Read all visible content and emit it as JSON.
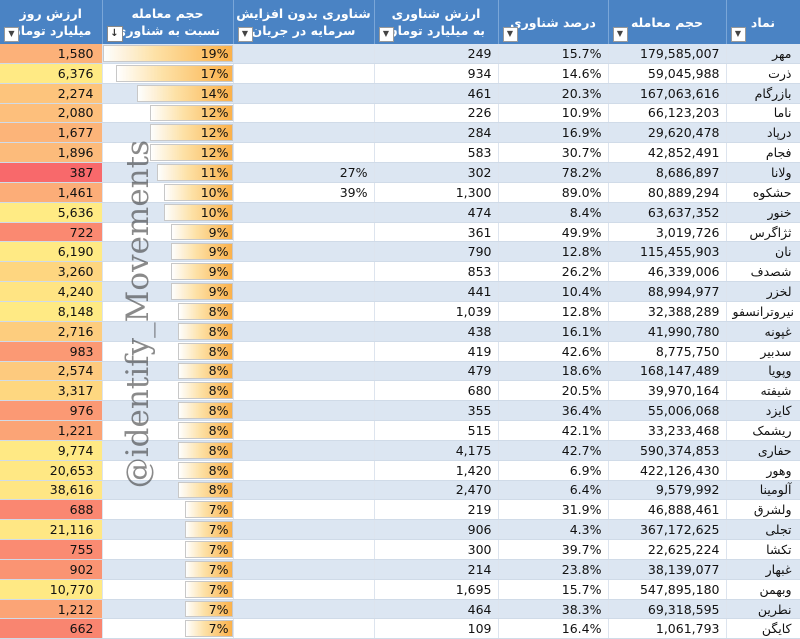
{
  "headers": {
    "value_day": "ارزش روز\nمیلیارد تومان",
    "vol_ratio": "حجم معامله\nنسبت به شناوری",
    "float_no_cap": "شناوری بدون افزایش\nسرمایه در جریان",
    "float_value": "ارزش شناوری\nبه میلیارد تومان",
    "float_pct": "درصد شناوری",
    "volume": "حجم معامله",
    "symbol": "نماد"
  },
  "watermark": "@identify_Movements",
  "colors": {
    "header": "#4a83c4",
    "band": "#dce6f2",
    "bar": "#fbb14a",
    "heat_low": "#f8696b",
    "heat_mid": "#ffeb84",
    "heat_high": "#f8696b"
  },
  "rows": [
    {
      "symbol": "مهر",
      "volume": "179,585,007",
      "float_pct": "15.7%",
      "float_value": "249",
      "float_no_cap": "",
      "ratio": "19%",
      "ratio_v": 19,
      "value_day": "1,580",
      "value_v": 1580
    },
    {
      "symbol": "ذرت",
      "volume": "59,045,988",
      "float_pct": "14.6%",
      "float_value": "934",
      "float_no_cap": "",
      "ratio": "17%",
      "ratio_v": 17,
      "value_day": "6,376",
      "value_v": 6376
    },
    {
      "symbol": "بازرگام",
      "volume": "167,063,616",
      "float_pct": "20.3%",
      "float_value": "461",
      "float_no_cap": "",
      "ratio": "14%",
      "ratio_v": 14,
      "value_day": "2,274",
      "value_v": 2274
    },
    {
      "symbol": "ناما",
      "volume": "66,123,203",
      "float_pct": "10.9%",
      "float_value": "226",
      "float_no_cap": "",
      "ratio": "12%",
      "ratio_v": 12,
      "value_day": "2,080",
      "value_v": 2080
    },
    {
      "symbol": "درپاد",
      "volume": "29,620,478",
      "float_pct": "16.9%",
      "float_value": "284",
      "float_no_cap": "",
      "ratio": "12%",
      "ratio_v": 12,
      "value_day": "1,677",
      "value_v": 1677
    },
    {
      "symbol": "فجام",
      "volume": "42,852,491",
      "float_pct": "30.7%",
      "float_value": "583",
      "float_no_cap": "",
      "ratio": "12%",
      "ratio_v": 12,
      "value_day": "1,896",
      "value_v": 1896
    },
    {
      "symbol": "ولانا",
      "volume": "8,686,897",
      "float_pct": "78.2%",
      "float_value": "302",
      "float_no_cap": "27%",
      "ratio": "11%",
      "ratio_v": 11,
      "value_day": "387",
      "value_v": 387
    },
    {
      "symbol": "حشکوه",
      "volume": "80,889,294",
      "float_pct": "89.0%",
      "float_value": "1,300",
      "float_no_cap": "39%",
      "ratio": "10%",
      "ratio_v": 10,
      "value_day": "1,461",
      "value_v": 1461
    },
    {
      "symbol": "خنور",
      "volume": "63,637,352",
      "float_pct": "8.4%",
      "float_value": "474",
      "float_no_cap": "",
      "ratio": "10%",
      "ratio_v": 10,
      "value_day": "5,636",
      "value_v": 5636
    },
    {
      "symbol": "ثژاگرس",
      "volume": "3,019,726",
      "float_pct": "49.9%",
      "float_value": "361",
      "float_no_cap": "",
      "ratio": "9%",
      "ratio_v": 9,
      "value_day": "722",
      "value_v": 722
    },
    {
      "symbol": "نان",
      "volume": "115,455,903",
      "float_pct": "12.8%",
      "float_value": "790",
      "float_no_cap": "",
      "ratio": "9%",
      "ratio_v": 9,
      "value_day": "6,190",
      "value_v": 6190
    },
    {
      "symbol": "شصدف",
      "volume": "46,339,006",
      "float_pct": "26.2%",
      "float_value": "853",
      "float_no_cap": "",
      "ratio": "9%",
      "ratio_v": 9,
      "value_day": "3,260",
      "value_v": 3260
    },
    {
      "symbol": "لخزر",
      "volume": "88,994,977",
      "float_pct": "10.4%",
      "float_value": "441",
      "float_no_cap": "",
      "ratio": "9%",
      "ratio_v": 9,
      "value_day": "4,240",
      "value_v": 4240
    },
    {
      "symbol": "نیروترانسفو",
      "volume": "32,388,289",
      "float_pct": "12.8%",
      "float_value": "1,039",
      "float_no_cap": "",
      "ratio": "8%",
      "ratio_v": 8,
      "value_day": "8,148",
      "value_v": 8148
    },
    {
      "symbol": "غپونه",
      "volume": "41,990,780",
      "float_pct": "16.1%",
      "float_value": "438",
      "float_no_cap": "",
      "ratio": "8%",
      "ratio_v": 8,
      "value_day": "2,716",
      "value_v": 2716
    },
    {
      "symbol": "سدبیر",
      "volume": "8,775,750",
      "float_pct": "42.6%",
      "float_value": "419",
      "float_no_cap": "",
      "ratio": "8%",
      "ratio_v": 8,
      "value_day": "983",
      "value_v": 983
    },
    {
      "symbol": "وپویا",
      "volume": "168,147,489",
      "float_pct": "18.6%",
      "float_value": "479",
      "float_no_cap": "",
      "ratio": "8%",
      "ratio_v": 8,
      "value_day": "2,574",
      "value_v": 2574
    },
    {
      "symbol": "شیفته",
      "volume": "39,970,164",
      "float_pct": "20.5%",
      "float_value": "680",
      "float_no_cap": "",
      "ratio": "8%",
      "ratio_v": 8,
      "value_day": "3,317",
      "value_v": 3317
    },
    {
      "symbol": "کایزد",
      "volume": "55,006,068",
      "float_pct": "36.4%",
      "float_value": "355",
      "float_no_cap": "",
      "ratio": "8%",
      "ratio_v": 8,
      "value_day": "976",
      "value_v": 976
    },
    {
      "symbol": "ریشمک",
      "volume": "33,233,468",
      "float_pct": "42.1%",
      "float_value": "515",
      "float_no_cap": "",
      "ratio": "8%",
      "ratio_v": 8,
      "value_day": "1,221",
      "value_v": 1221
    },
    {
      "symbol": "حفاری",
      "volume": "590,374,853",
      "float_pct": "42.7%",
      "float_value": "4,175",
      "float_no_cap": "",
      "ratio": "8%",
      "ratio_v": 8,
      "value_day": "9,774",
      "value_v": 9774
    },
    {
      "symbol": "وهور",
      "volume": "422,126,430",
      "float_pct": "6.9%",
      "float_value": "1,420",
      "float_no_cap": "",
      "ratio": "8%",
      "ratio_v": 8,
      "value_day": "20,653",
      "value_v": 20653
    },
    {
      "symbol": "آلومینا",
      "volume": "9,579,992",
      "float_pct": "6.4%",
      "float_value": "2,470",
      "float_no_cap": "",
      "ratio": "8%",
      "ratio_v": 8,
      "value_day": "38,616",
      "value_v": 38616
    },
    {
      "symbol": "ولشرق",
      "volume": "46,888,461",
      "float_pct": "31.9%",
      "float_value": "219",
      "float_no_cap": "",
      "ratio": "7%",
      "ratio_v": 7,
      "value_day": "688",
      "value_v": 688
    },
    {
      "symbol": "تجلی",
      "volume": "367,172,625",
      "float_pct": "4.3%",
      "float_value": "906",
      "float_no_cap": "",
      "ratio": "7%",
      "ratio_v": 7,
      "value_day": "21,116",
      "value_v": 21116
    },
    {
      "symbol": "تکشا",
      "volume": "22,625,224",
      "float_pct": "39.7%",
      "float_value": "300",
      "float_no_cap": "",
      "ratio": "7%",
      "ratio_v": 7,
      "value_day": "755",
      "value_v": 755
    },
    {
      "symbol": "غبهار",
      "volume": "38,139,077",
      "float_pct": "23.8%",
      "float_value": "214",
      "float_no_cap": "",
      "ratio": "7%",
      "ratio_v": 7,
      "value_day": "902",
      "value_v": 902
    },
    {
      "symbol": "وبهمن",
      "volume": "547,895,180",
      "float_pct": "15.7%",
      "float_value": "1,695",
      "float_no_cap": "",
      "ratio": "7%",
      "ratio_v": 7,
      "value_day": "10,770",
      "value_v": 10770
    },
    {
      "symbol": "نطرین",
      "volume": "69,318,595",
      "float_pct": "38.3%",
      "float_value": "464",
      "float_no_cap": "",
      "ratio": "7%",
      "ratio_v": 7,
      "value_day": "1,212",
      "value_v": 1212
    },
    {
      "symbol": "کایگن",
      "volume": "1,061,793",
      "float_pct": "16.4%",
      "float_value": "109",
      "float_no_cap": "",
      "ratio": "7%",
      "ratio_v": 7,
      "value_day": "662",
      "value_v": 662
    }
  ]
}
